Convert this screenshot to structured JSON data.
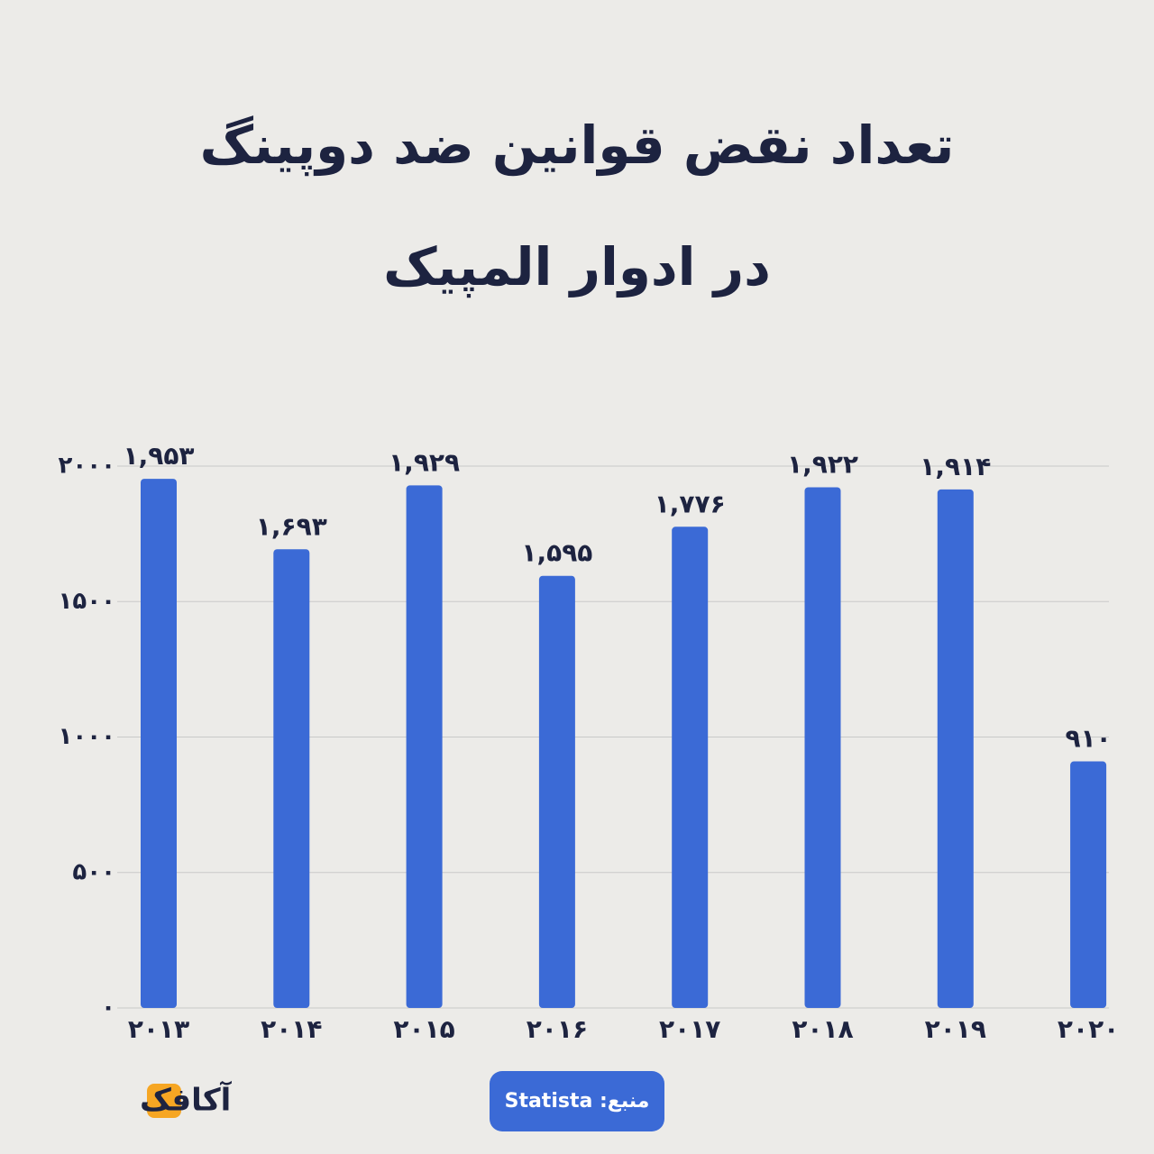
{
  "chart_data": {
    "type": "bar",
    "title": [
      "تعداد نقض قوانین ضد دوپینگ",
      "در ادوار المپیک"
    ],
    "categories": [
      "۲۰۱۳",
      "۲۰۱۴",
      "۲۰۱۵",
      "۲۰۱۶",
      "۲۰۱۷",
      "۲۰۱۸",
      "۲۰۱۹",
      "۲۰۲۰"
    ],
    "values": [
      1953,
      1693,
      1929,
      1595,
      1776,
      1922,
      1914,
      910
    ],
    "value_labels": [
      "۱,۹۵۳",
      "۱,۶۹۳",
      "۱,۹۲۹",
      "۱,۵۹۵",
      "۱,۷۷۶",
      "۱,۹۲۲",
      "۱,۹۱۴",
      "۹۱۰"
    ],
    "color": "#3b6ad6",
    "ylim": [
      0,
      2000
    ],
    "yticks": [
      {
        "value": 0,
        "label": "۰"
      },
      {
        "value": 500,
        "label": "۵۰۰"
      },
      {
        "value": 1000,
        "label": "۱۰۰۰"
      },
      {
        "value": 1500,
        "label": "۱۵۰۰"
      },
      {
        "value": 2000,
        "label": "۲۰۰۰"
      }
    ],
    "grid": true,
    "source": "منبع: Statista",
    "logo": "آکافک"
  }
}
